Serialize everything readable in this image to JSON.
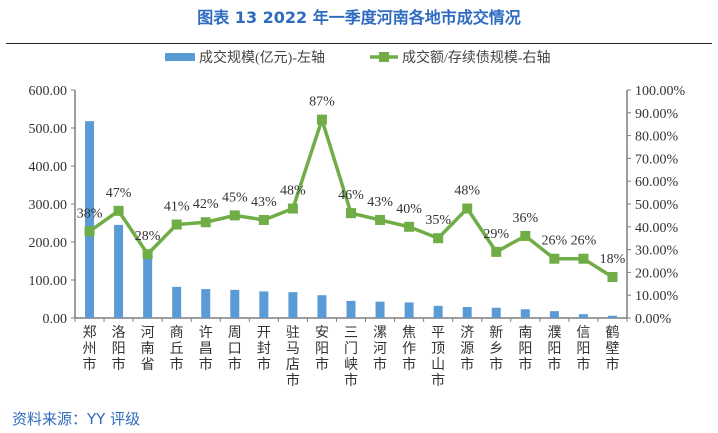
{
  "title": "图表 13 2022 年一季度河南各地市成交情况",
  "source": "资料来源：YY 评级",
  "chart_data": {
    "type": "bar+line",
    "categories": [
      "郑州市",
      "洛阳市",
      "河南省",
      "商丘市",
      "许昌市",
      "周口市",
      "开封市",
      "驻马店市",
      "安阳市",
      "三门峡市",
      "漯河市",
      "焦作市",
      "平顶山市",
      "济源市",
      "新乡市",
      "南阳市",
      "濮阳市",
      "信阳市",
      "鹤壁市"
    ],
    "series": [
      {
        "name": "成交规模(亿元)-左轴",
        "type": "bar",
        "axis": "left",
        "color": "#5b9bd5",
        "values": [
          518,
          245,
          178,
          82,
          76,
          74,
          70,
          68,
          60,
          45,
          43,
          41,
          32,
          29,
          27,
          23,
          18,
          10,
          6
        ]
      },
      {
        "name": "成交额/存续债规模-右轴",
        "type": "line",
        "axis": "right",
        "color": "#70ad47",
        "values": [
          38,
          47,
          28,
          41,
          42,
          45,
          43,
          48,
          87,
          46,
          43,
          40,
          35,
          48,
          29,
          36,
          26,
          26,
          18
        ],
        "labels": [
          "38%",
          "47%",
          "28%",
          "41%",
          "42%",
          "45%",
          "43%",
          "48%",
          "87%",
          "46%",
          "43%",
          "40%",
          "35%",
          "48%",
          "29%",
          "36%",
          "26%",
          "26%",
          "18%"
        ]
      }
    ],
    "left_axis": {
      "ylim": [
        0,
        600
      ],
      "ticks": [
        "0.00",
        "100.00",
        "200.00",
        "300.00",
        "400.00",
        "500.00",
        "600.00"
      ]
    },
    "right_axis": {
      "ylim": [
        0,
        100
      ],
      "ticks": [
        "0.00%",
        "10.00%",
        "20.00%",
        "30.00%",
        "40.00%",
        "50.00%",
        "60.00%",
        "70.00%",
        "80.00%",
        "90.00%",
        "100.00%"
      ]
    },
    "legend_position": "top",
    "grid": false
  }
}
